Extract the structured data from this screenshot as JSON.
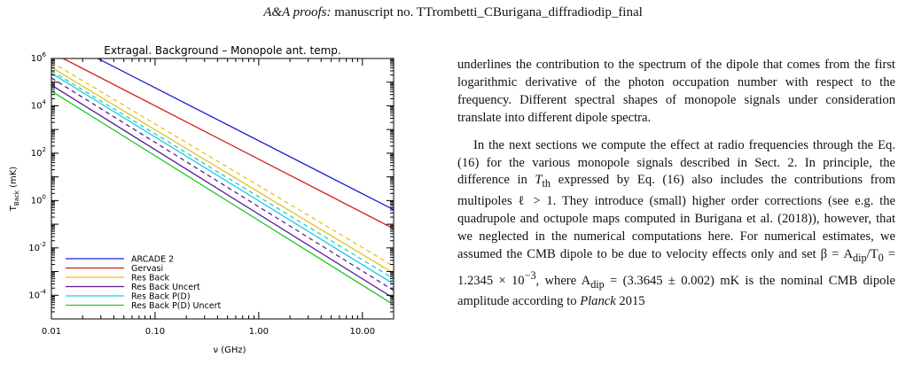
{
  "header": {
    "journal": "A&A proofs:",
    "manuscript": "manuscript no. TTrombetti_CBurigana_diffradiodip_final"
  },
  "text": {
    "p1": "underlines the contribution to the spectrum of the dipole that comes from the first logarithmic derivative of the photon occupation number with respect to the frequency. Different spectral shapes of monopole signals under consideration translate into different dipole spectra.",
    "p2_a": "In the next sections we compute the effect at radio frequencies through the Eq. (16) for the various monopole signals described in Sect. 2. In principle, the difference in ",
    "p2_Tth": "T",
    "p2_th": "th",
    "p2_b": " expressed by Eq. (16) also includes the contributions from multipoles ℓ > 1. They introduce (small) higher order corrections (see e.g. the quadrupole and octupole maps computed in Burigana et al. (2018)), however, that we neglected in the numerical computations here. For numerical estimates, we assumed the CMB dipole to be due to velocity effects only and set β = A",
    "p2_dip1": "dip",
    "p2_c": "/T",
    "p2_zero": "0",
    "p2_d": " = 1.2345 × 10",
    "p2_exp": "−3",
    "p2_e": ", where A",
    "p2_dip2": "dip",
    "p2_f": " = (3.3645 ± 0.002) mK is the nominal CMB dipole amplitude according to ",
    "p2_planck": "Planck",
    "p2_g": " 2015"
  },
  "chart_data": {
    "type": "line",
    "title": "Extragal. Background - Monopole ant. temp.",
    "xlabel": "ν (GHz)",
    "ylabel": "T_Back (mK)",
    "xscale": "log",
    "yscale": "log",
    "xlim": [
      0.01,
      20
    ],
    "ylim": [
      1e-05,
      1000000
    ],
    "xticks": [
      "0.01",
      "0.10",
      "1.00",
      "10.00"
    ],
    "yticks": [
      "10^6",
      "10^4",
      "10^2",
      "10^0",
      "10^-2",
      "10^-4"
    ],
    "legend_position": "lower-left",
    "series": [
      {
        "name": "ARCADE 2",
        "color": "#1a1ad6",
        "dash": "solid",
        "x": [
          0.01,
          20
        ],
        "y": [
          10000000,
          0.41
        ]
      },
      {
        "name": "Gervasi",
        "color": "#d61a1a",
        "dash": "solid",
        "x": [
          0.01,
          20
        ],
        "y": [
          1800000,
          0.065
        ]
      },
      {
        "name": "Res Back",
        "color": "#e8c020",
        "dash": "dashed",
        "x": [
          0.01,
          20
        ],
        "y": [
          700000,
          0.0017
        ]
      },
      {
        "name": "Res Back",
        "color": "#e8c020",
        "dash": "solid",
        "x": [
          0.01,
          20
        ],
        "y": [
          420000,
          0.00085
        ]
      },
      {
        "name": "Res Back Uncert",
        "color": "#5a1a9a",
        "dash": "solid",
        "x": [
          0.01,
          20
        ],
        "y": [
          75000,
          7.5e-05
        ]
      },
      {
        "name": "Res Back Uncert",
        "color": "#5a1a9a",
        "dash": "dashed",
        "x": [
          0.01,
          20
        ],
        "y": [
          150000,
          0.00016
        ]
      },
      {
        "name": "Res Back P(D)",
        "color": "#1acde0",
        "dash": "dashed",
        "x": [
          0.01,
          20
        ],
        "y": [
          300000,
          0.0005
        ]
      },
      {
        "name": "Res Back P(D)",
        "color": "#1acde0",
        "dash": "solid",
        "x": [
          0.01,
          20
        ],
        "y": [
          240000,
          0.0003
        ]
      },
      {
        "name": "Res Back P(D) Uncert",
        "color": "#22c822",
        "dash": "solid",
        "x": [
          0.01,
          20
        ],
        "y": [
          42000,
          4e-05
        ]
      }
    ],
    "legend": [
      {
        "label": "ARCADE 2",
        "color": "#1a1ad6"
      },
      {
        "label": "Gervasi",
        "color": "#d61a1a"
      },
      {
        "label": "Res Back",
        "color": "#e8c020"
      },
      {
        "label": "Res Back Uncert",
        "color": "#5a1a9a"
      },
      {
        "label": "Res Back P(D)",
        "color": "#1acde0"
      },
      {
        "label": "Res Back P(D) Uncert",
        "color": "#22c822"
      }
    ]
  }
}
